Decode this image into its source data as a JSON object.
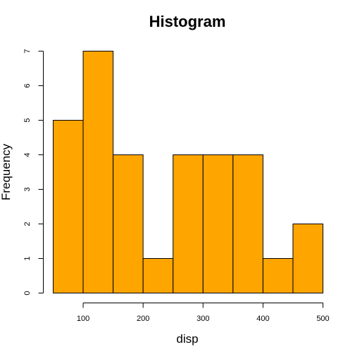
{
  "chart_data": {
    "type": "bar",
    "title": "Histogram",
    "xlabel": "disp",
    "ylabel": "Frequency",
    "bins": [
      {
        "start": 50,
        "end": 100,
        "count": 5
      },
      {
        "start": 100,
        "end": 150,
        "count": 7
      },
      {
        "start": 150,
        "end": 200,
        "count": 4
      },
      {
        "start": 200,
        "end": 250,
        "count": 1
      },
      {
        "start": 250,
        "end": 300,
        "count": 4
      },
      {
        "start": 300,
        "end": 350,
        "count": 4
      },
      {
        "start": 350,
        "end": 400,
        "count": 4
      },
      {
        "start": 400,
        "end": 450,
        "count": 1
      },
      {
        "start": 450,
        "end": 500,
        "count": 2
      }
    ],
    "xlim": [
      50,
      500
    ],
    "ylim": [
      0,
      7
    ],
    "x_ticks": [
      100,
      200,
      300,
      400,
      500
    ],
    "y_ticks": [
      0,
      1,
      2,
      3,
      4,
      5,
      6,
      7
    ],
    "bar_color": "#FFA500",
    "border_color": "#000000",
    "grid": false,
    "legend": "none"
  }
}
